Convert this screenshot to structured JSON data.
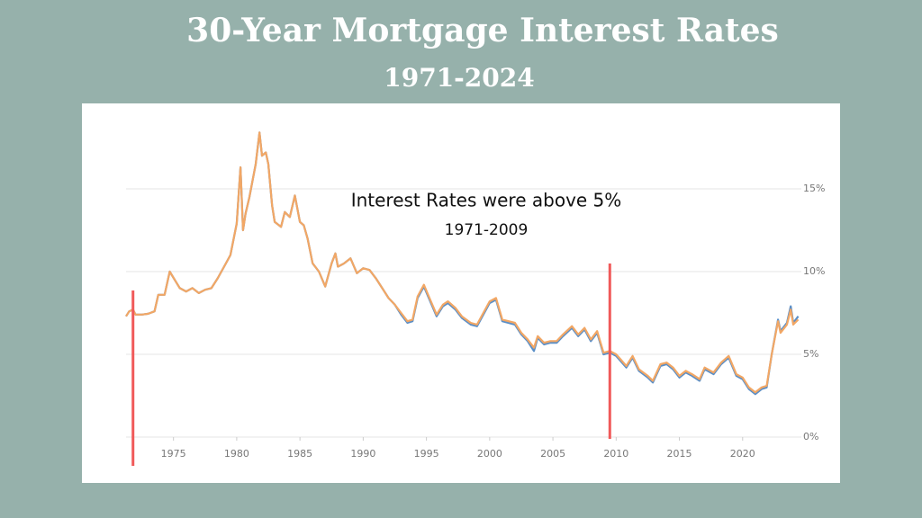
{
  "chart_data": {
    "type": "line",
    "title": "30-Year Mortgage Interest Rates",
    "subtitle": "1971-2024",
    "annotations": [
      "Interest Rates were above 5%",
      "1971-2009"
    ],
    "x": [
      1971.25,
      1971.5,
      1971.8,
      1972,
      1972.5,
      1973,
      1973.5,
      1973.8,
      1974.3,
      1974.7,
      1975.5,
      1976,
      1976.5,
      1977,
      1977.5,
      1978,
      1978.5,
      1979,
      1979.5,
      1980,
      1980.3,
      1980.5,
      1980.7,
      1981,
      1981.5,
      1981.8,
      1982,
      1982.3,
      1982.5,
      1982.8,
      1983,
      1983.5,
      1983.8,
      1984.2,
      1984.6,
      1985,
      1985.3,
      1985.6,
      1986,
      1986.5,
      1987,
      1987.5,
      1987.8,
      1988,
      1988.5,
      1989,
      1989.5,
      1990,
      1990.5,
      1991,
      1991.5,
      1992,
      1992.5,
      1993,
      1993.5,
      1993.9,
      1994.3,
      1994.8,
      1995.3,
      1995.8,
      1996.3,
      1996.7,
      1997.3,
      1997.8,
      1998.5,
      1999,
      1999.5,
      2000,
      2000.5,
      2001,
      2001.5,
      2002,
      2002.5,
      2003,
      2003.5,
      2003.8,
      2004.3,
      2004.8,
      2005.3,
      2005.8,
      2006.5,
      2007,
      2007.5,
      2008,
      2008.5,
      2009,
      2009.5,
      2010,
      2010.8,
      2011.3,
      2011.8,
      2012.5,
      2012.9,
      2013.5,
      2014,
      2014.5,
      2015,
      2015.5,
      2016,
      2016.6,
      2017,
      2017.7,
      2018.3,
      2018.9,
      2019.5,
      2020,
      2020.5,
      2021,
      2021.5,
      2021.9,
      2022.3,
      2022.8,
      2023,
      2023.5,
      2023.8,
      2024,
      2024.4
    ],
    "series": [
      {
        "color": "#5b8fc7",
        "values": [
          7.3,
          7.6,
          7.7,
          7.4,
          7.4,
          7.45,
          7.6,
          8.6,
          8.6,
          10.0,
          9.0,
          8.8,
          9.0,
          8.7,
          8.9,
          9.0,
          9.6,
          10.3,
          11.0,
          12.9,
          16.3,
          12.5,
          13.5,
          14.5,
          16.5,
          18.4,
          17.0,
          17.2,
          16.5,
          14.0,
          13.0,
          12.7,
          13.6,
          13.3,
          14.6,
          13.0,
          12.8,
          12.0,
          10.5,
          10.0,
          9.1,
          10.5,
          11.1,
          10.3,
          10.5,
          10.8,
          9.9,
          10.2,
          10.1,
          9.6,
          9.0,
          8.4,
          8.0,
          7.4,
          6.9,
          7.0,
          8.4,
          9.1,
          8.2,
          7.3,
          7.9,
          8.1,
          7.7,
          7.2,
          6.8,
          6.7,
          7.4,
          8.1,
          8.3,
          7.0,
          6.9,
          6.8,
          6.2,
          5.8,
          5.2,
          6.0,
          5.6,
          5.7,
          5.7,
          6.1,
          6.6,
          6.1,
          6.5,
          5.8,
          6.3,
          5.0,
          5.1,
          4.9,
          4.2,
          4.8,
          4.0,
          3.6,
          3.3,
          4.3,
          4.4,
          4.1,
          3.6,
          3.9,
          3.7,
          3.4,
          4.1,
          3.8,
          4.4,
          4.8,
          3.7,
          3.5,
          2.9,
          2.6,
          2.9,
          3.0,
          5.0,
          7.1,
          6.4,
          6.9,
          7.9,
          6.9,
          7.3
        ]
      },
      {
        "color": "#f2a765",
        "values": [
          7.3,
          7.6,
          7.7,
          7.4,
          7.4,
          7.45,
          7.6,
          8.6,
          8.6,
          10.0,
          9.0,
          8.8,
          9.0,
          8.7,
          8.9,
          9.0,
          9.6,
          10.3,
          11.0,
          12.9,
          16.3,
          12.5,
          13.5,
          14.5,
          16.5,
          18.4,
          17.0,
          17.2,
          16.5,
          14.0,
          13.0,
          12.7,
          13.6,
          13.3,
          14.6,
          13.0,
          12.8,
          12.0,
          10.5,
          10.0,
          9.1,
          10.5,
          11.1,
          10.3,
          10.5,
          10.8,
          9.9,
          10.2,
          10.1,
          9.6,
          9.0,
          8.4,
          8.0,
          7.5,
          7.0,
          7.1,
          8.5,
          9.2,
          8.3,
          7.4,
          8.0,
          8.2,
          7.8,
          7.3,
          6.9,
          6.8,
          7.5,
          8.2,
          8.4,
          7.1,
          7.0,
          6.9,
          6.3,
          5.9,
          5.4,
          6.1,
          5.7,
          5.8,
          5.8,
          6.2,
          6.7,
          6.2,
          6.6,
          5.9,
          6.4,
          5.1,
          5.2,
          5.0,
          4.3,
          4.9,
          4.1,
          3.7,
          3.4,
          4.4,
          4.5,
          4.2,
          3.7,
          4.0,
          3.8,
          3.5,
          4.2,
          3.9,
          4.5,
          4.9,
          3.8,
          3.6,
          3.0,
          2.7,
          3.0,
          3.1,
          5.0,
          7.0,
          6.3,
          6.8,
          7.7,
          6.8,
          7.1
        ]
      }
    ],
    "vlines": {
      "x": [
        1971.8,
        2009.5
      ],
      "color": "#f05a5a"
    },
    "xlim": [
      1971.25,
      2024.5
    ],
    "xticks": [
      1975,
      1980,
      1985,
      1990,
      1995,
      2000,
      2005,
      2010,
      2015,
      2020
    ],
    "ylim": [
      0,
      20
    ],
    "yticks": [
      {
        "value": 0,
        "label": "0%"
      },
      {
        "value": 5,
        "label": "5%"
      },
      {
        "value": 10,
        "label": "10%"
      },
      {
        "value": 15,
        "label": "15%"
      }
    ],
    "grid": true
  }
}
